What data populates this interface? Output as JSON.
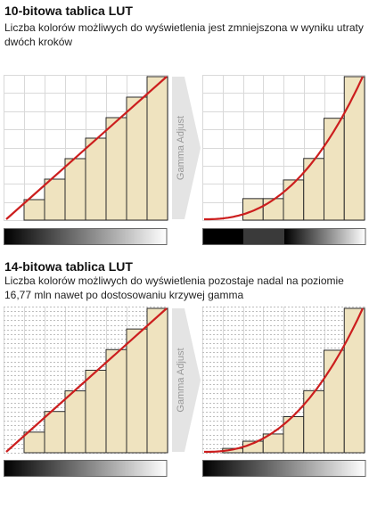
{
  "sections": [
    {
      "title": "10-bitowa tablica LUT",
      "subtitle": "Liczba kolorów możliwych do wyświetlenia jest zmniejszona w wyniku utraty dwóch kroków",
      "arrow_label": "Gamma Adjust",
      "left_steps": 8,
      "left_bar_count": 7,
      "right_bar_heights": [
        0.0,
        0.0,
        0.15,
        0.15,
        0.28,
        0.43,
        0.71,
        1.0
      ],
      "gradient_left": "smooth",
      "gradient_right": "banded"
    },
    {
      "title": "14-bitowa tablica LUT",
      "subtitle": "Liczba kolorów możliwych do wyświetlenia pozostaje nadal na poziomie 16,77 mln nawet po dostosowaniu krzywej gamma",
      "arrow_label": "Gamma Adjust",
      "left_steps": 8,
      "left_bar_count": 7,
      "right_bar_heights": [
        0.0,
        0.03,
        0.08,
        0.13,
        0.25,
        0.43,
        0.71,
        1.0
      ],
      "gradient_left": "smooth",
      "gradient_right": "smooth"
    }
  ],
  "colors": {
    "bar_fill": "#efe3bf",
    "bar_stroke": "#2b2b2b",
    "curve": "#cc1e1e",
    "grid": "#d9d9d9",
    "arrow": "#e4e4e4"
  }
}
